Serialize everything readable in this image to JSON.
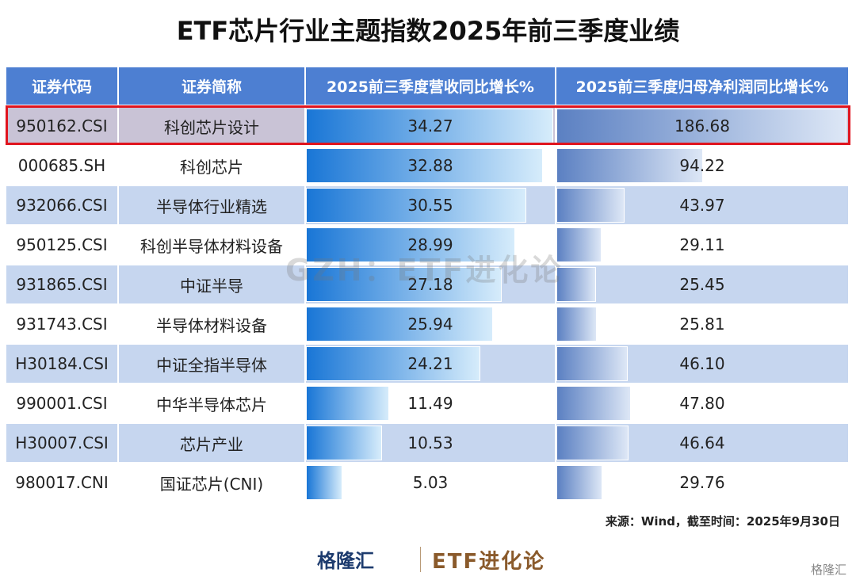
{
  "title": "ETF芯片行业主题指数2025年前三季度业绩",
  "table": {
    "headers": [
      "证券代码",
      "证券简称",
      "2025前三季度营收同比增长%",
      "2025前三季度归母净利润同比增长%"
    ],
    "rows": [
      [
        "950162.CSI",
        "科创芯片设计",
        "34.27",
        "186.68"
      ],
      [
        "000685.SH",
        "科创芯片",
        "32.88",
        "94.22"
      ],
      [
        "932066.CSI",
        "半导体行业精选",
        "30.55",
        "43.97"
      ],
      [
        "950125.CSI",
        "科创半导体材料设备",
        "28.99",
        "29.11"
      ],
      [
        "931865.CSI",
        "中证半导",
        "27.18",
        "25.45"
      ],
      [
        "931743.CSI",
        "半导体材料设备",
        "25.94",
        "25.81"
      ],
      [
        "H30184.CSI",
        "中证全指半导体",
        "24.21",
        "46.10"
      ],
      [
        "990001.CSI",
        "中华半导体芯片",
        "11.49",
        "47.80"
      ],
      [
        "H30007.CSI",
        "芯片产业",
        "10.53",
        "46.64"
      ],
      [
        "980017.CNI",
        "国证芯片(CNI)",
        "5.03",
        "29.76"
      ]
    ],
    "highlighted_row": 0
  },
  "watermark": "GZH：ETF进化论",
  "source": "来源：Wind，截至时间：2025年9月30日",
  "footer": {
    "logo": "格隆汇",
    "brand": "ETF进化论",
    "corner": "格隆汇"
  }
}
